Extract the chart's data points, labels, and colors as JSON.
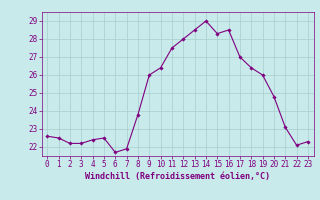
{
  "x": [
    0,
    1,
    2,
    3,
    4,
    5,
    6,
    7,
    8,
    9,
    10,
    11,
    12,
    13,
    14,
    15,
    16,
    17,
    18,
    19,
    20,
    21,
    22,
    23
  ],
  "y": [
    22.6,
    22.5,
    22.2,
    22.2,
    22.4,
    22.5,
    21.7,
    21.9,
    23.8,
    26.0,
    26.4,
    27.5,
    28.0,
    28.5,
    29.0,
    28.3,
    28.5,
    27.0,
    26.4,
    26.0,
    24.8,
    23.1,
    22.1,
    22.3
  ],
  "line_color": "#800080",
  "marker_color": "#800080",
  "bg_color": "#c8eaea",
  "grid_color": "#a8cece",
  "text_color": "#800080",
  "xlabel": "Windchill (Refroidissement éolien,°C)",
  "ylim": [
    21.5,
    29.5
  ],
  "xlim": [
    -0.5,
    23.5
  ],
  "yticks": [
    22,
    23,
    24,
    25,
    26,
    27,
    28,
    29
  ],
  "xticks": [
    0,
    1,
    2,
    3,
    4,
    5,
    6,
    7,
    8,
    9,
    10,
    11,
    12,
    13,
    14,
    15,
    16,
    17,
    18,
    19,
    20,
    21,
    22,
    23
  ],
  "tick_fontsize": 5.5,
  "xlabel_fontsize": 6.0
}
